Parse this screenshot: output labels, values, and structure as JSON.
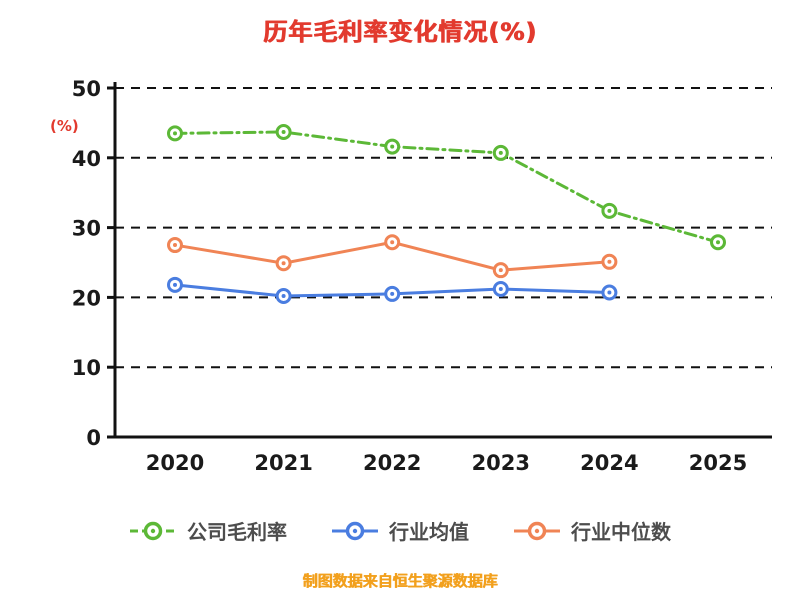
{
  "chart_data": {
    "type": "line",
    "title": "历年毛利率变化情况(%)",
    "title_color": "#e23a2e",
    "ylabel": "(%)",
    "ylabel_color": "#e23a2e",
    "x": [
      "2020",
      "2021",
      "2022",
      "2023",
      "2024",
      "2025"
    ],
    "ylim": [
      0,
      50
    ],
    "yticks": [
      0,
      10,
      20,
      30,
      40,
      50
    ],
    "grid": "horizontal-dashed",
    "legend_position": "bottom",
    "series": [
      {
        "name": "公司毛利率",
        "color": "#5cb837",
        "line_style": "dashdot",
        "values": [
          43.5,
          43.7,
          41.6,
          40.7,
          32.4,
          27.9
        ]
      },
      {
        "name": "行业均值",
        "color": "#4a7de0",
        "line_style": "solid",
        "values": [
          21.8,
          20.2,
          20.5,
          21.2,
          20.7,
          null
        ]
      },
      {
        "name": "行业中位数",
        "color": "#f08455",
        "line_style": "solid",
        "values": [
          27.5,
          24.9,
          27.9,
          23.9,
          25.1,
          null
        ]
      }
    ],
    "footer": "制图数据来自恒生聚源数据库",
    "footer_color": "#f2a01d",
    "axis_color": "#111111",
    "tick_label_color": "#1a1a1a"
  }
}
